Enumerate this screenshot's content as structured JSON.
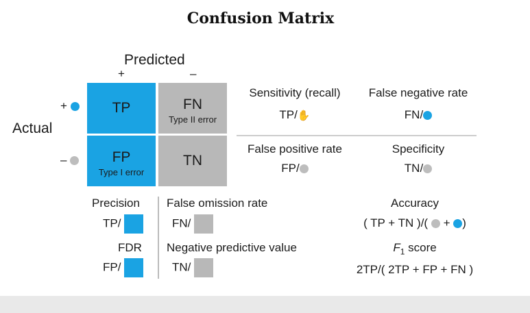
{
  "title": "Confusion Matrix",
  "axes": {
    "predicted": "Predicted",
    "actual": "Actual",
    "pred_pos": "+",
    "pred_neg": "–",
    "act_pos": "+",
    "act_neg": "–"
  },
  "cells": {
    "tp": {
      "label": "TP"
    },
    "fn": {
      "label": "FN",
      "sub": "Type II error"
    },
    "fp": {
      "label": "FP",
      "sub": "Type I error"
    },
    "tn": {
      "label": "TN"
    }
  },
  "metrics": {
    "sensitivity": {
      "label": "Sensitivity (recall)",
      "formula": "TP/"
    },
    "fnr": {
      "label": "False negative rate",
      "formula": "FN/"
    },
    "fpr": {
      "label": "False positive rate",
      "formula": "FP/"
    },
    "specificity": {
      "label": "Specificity",
      "formula": "TN/"
    },
    "precision": {
      "label": "Precision",
      "formula": "TP/"
    },
    "fdr": {
      "label": "FDR",
      "formula": "FP/"
    },
    "for": {
      "label": "False omission rate",
      "formula": "FN/"
    },
    "npv": {
      "label": "Negative predictive value",
      "formula": "TN/"
    },
    "accuracy": {
      "label": "Accuracy",
      "formula_open": "( TP + TN )/(",
      "formula_plus": "+",
      "formula_close": ")"
    },
    "f1": {
      "label_f": "F",
      "label_sub": "1",
      "label_rest": " score",
      "formula": "2TP/( 2TP + FP + FN )"
    }
  },
  "colors": {
    "positive": "#1aa3e3",
    "negative": "#b8b8b8"
  },
  "icons": {
    "cursor": "hand-cursor-icon"
  }
}
